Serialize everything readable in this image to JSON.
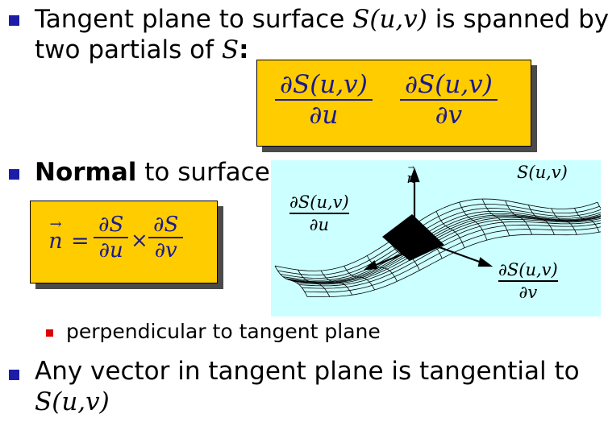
{
  "bullets": {
    "b1_line1_pre": "Tangent plane to surface ",
    "b1_surface": "S(u,v)",
    "b1_line1_post": " is spanned by",
    "b1_line2_pre": "two partials of ",
    "b1_S": "S",
    "b1_colon": ":",
    "b2_bold": "Normal",
    "b2_rest": " to surface",
    "sub1": "perpendicular to tangent plane",
    "b3_line1": "Any vector in tangent plane is tangential to",
    "b3_line2": "S(u,v)"
  },
  "partials_box": {
    "du_num": "∂S(u,v)",
    "du_den": "∂u",
    "dv_num": "∂S(u,v)",
    "dv_den": "∂v"
  },
  "normal_box": {
    "arrow": "→",
    "n": "n",
    "equals": "=",
    "f1_num": "∂S",
    "f1_den": "∂u",
    "times": "×",
    "f2_num": "∂S",
    "f2_den": "∂v"
  },
  "figure": {
    "surface_label": "S(u,v)",
    "normal_label": "n",
    "normal_arrow": "→",
    "du_num": "∂S(u,v)",
    "du_den": "∂u",
    "dv_num": "∂S(u,v)",
    "dv_den": "∂v"
  },
  "colors": {
    "bullet_main": "#1c1ca8",
    "bullet_sub": "#e00000",
    "box_fill": "#ffcc00",
    "formula_text": "#1a1a8c",
    "figure_bg": "#ccffff"
  }
}
